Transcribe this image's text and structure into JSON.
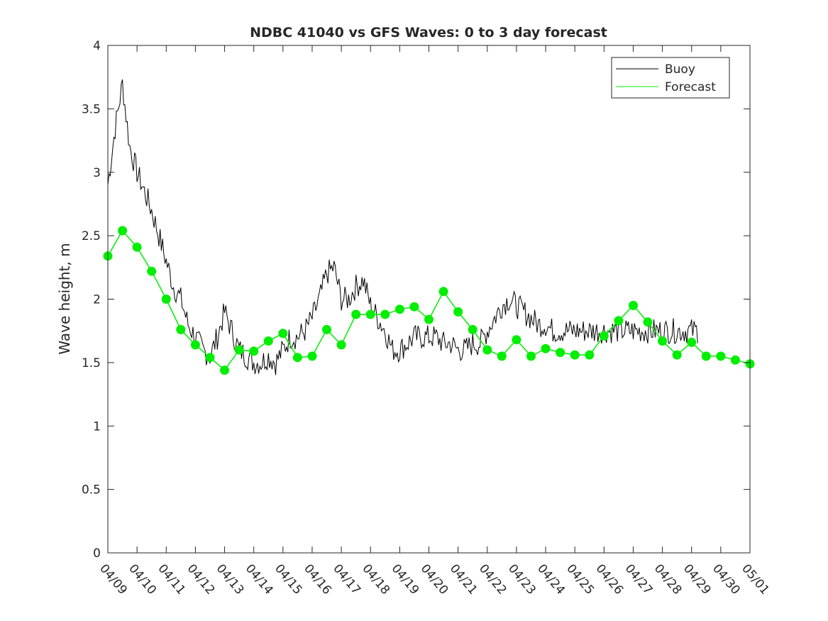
{
  "chart_data": {
    "type": "line",
    "title": "NDBC 41040 vs GFS Waves: 0 to 3 day forecast",
    "xlabel": "",
    "ylabel": "Wave height, m",
    "ylim": [
      0,
      4
    ],
    "yticks": [
      "0",
      "0.5",
      "1",
      "1.5",
      "2",
      "2.5",
      "3",
      "3.5",
      "4"
    ],
    "xlim": [
      0,
      22
    ],
    "xticks": [
      "04/09",
      "04/10",
      "04/11",
      "04/12",
      "04/13",
      "04/14",
      "04/15",
      "04/16",
      "04/17",
      "04/18",
      "04/19",
      "04/20",
      "04/21",
      "04/22",
      "04/23",
      "04/24",
      "04/25",
      "04/26",
      "04/27",
      "04/28",
      "04/29",
      "04/30",
      "05/01"
    ],
    "grid": false,
    "legend_position": "top-right",
    "colors": {
      "buoy": "#000000",
      "forecast": "#00ee00"
    },
    "series": [
      {
        "name": "Buoy",
        "x": [
          0.0,
          0.25,
          0.5,
          0.75,
          1.0,
          1.25,
          1.5,
          1.75,
          2.0,
          2.25,
          2.5,
          2.75,
          3.0,
          3.25,
          3.5,
          3.75,
          4.0,
          4.25,
          4.5,
          4.75,
          5.0,
          5.25,
          5.5,
          5.75,
          6.0,
          6.25,
          6.5,
          6.75,
          7.0,
          7.25,
          7.5,
          7.75,
          8.0,
          8.25,
          8.5,
          8.75,
          9.0,
          9.25,
          9.5,
          9.75,
          10.0,
          10.25,
          10.5,
          10.75,
          11.0,
          11.25,
          11.5,
          11.75,
          12.0,
          12.25,
          12.5,
          12.75,
          13.0,
          13.25,
          13.5,
          13.75,
          14.0,
          14.25,
          14.5,
          14.75,
          15.0,
          15.25,
          15.5,
          15.75,
          16.0,
          16.25,
          16.5,
          16.75,
          17.0,
          17.25,
          17.5,
          17.75,
          18.0,
          18.25,
          18.5,
          18.75,
          19.0,
          19.25,
          19.5,
          19.75,
          20.0,
          20.25
        ],
        "values": [
          2.9,
          3.35,
          3.7,
          3.2,
          3.0,
          2.85,
          2.7,
          2.5,
          2.3,
          2.1,
          2.0,
          1.8,
          1.7,
          1.6,
          1.55,
          1.7,
          1.9,
          1.75,
          1.6,
          1.55,
          1.5,
          1.5,
          1.55,
          1.5,
          1.6,
          1.7,
          1.7,
          1.75,
          1.85,
          2.0,
          2.2,
          2.25,
          2.0,
          2.0,
          2.1,
          2.15,
          1.95,
          1.85,
          1.75,
          1.6,
          1.6,
          1.65,
          1.7,
          1.7,
          1.7,
          1.7,
          1.65,
          1.65,
          1.6,
          1.6,
          1.65,
          1.65,
          1.75,
          1.85,
          1.95,
          2.0,
          1.95,
          1.9,
          1.85,
          1.8,
          1.8,
          1.75,
          1.75,
          1.75,
          1.75,
          1.75,
          1.75,
          1.75,
          1.75,
          1.75,
          1.75,
          1.75,
          1.75,
          1.75,
          1.75,
          1.75,
          1.75,
          1.75,
          1.75,
          1.75,
          1.75,
          1.75
        ]
      },
      {
        "name": "Forecast",
        "x": [
          0.0,
          0.5,
          1.0,
          1.5,
          2.0,
          2.5,
          3.0,
          3.5,
          4.0,
          4.5,
          5.0,
          5.5,
          6.0,
          6.5,
          7.0,
          7.5,
          8.0,
          8.5,
          9.0,
          9.5,
          10.0,
          10.5,
          11.0,
          11.5,
          12.0,
          12.5,
          13.0,
          13.5,
          14.0,
          14.5,
          15.0,
          15.5,
          16.0,
          16.5,
          17.0,
          17.5,
          18.0,
          18.5,
          19.0,
          19.5,
          20.0,
          20.5,
          21.0,
          21.5,
          22.0
        ],
        "values": [
          2.34,
          2.54,
          2.41,
          2.22,
          2.0,
          1.76,
          1.64,
          1.54,
          1.44,
          1.6,
          1.59,
          1.67,
          1.73,
          1.54,
          1.55,
          1.76,
          1.64,
          1.88,
          1.88,
          1.88,
          1.92,
          1.94,
          1.84,
          2.06,
          1.9,
          1.76,
          1.6,
          1.55,
          1.68,
          1.55,
          1.61,
          1.58,
          1.56,
          1.56,
          1.71,
          1.83,
          1.95,
          1.82,
          1.67,
          1.56,
          1.66,
          1.55,
          1.55,
          1.52,
          1.49
        ]
      }
    ]
  }
}
